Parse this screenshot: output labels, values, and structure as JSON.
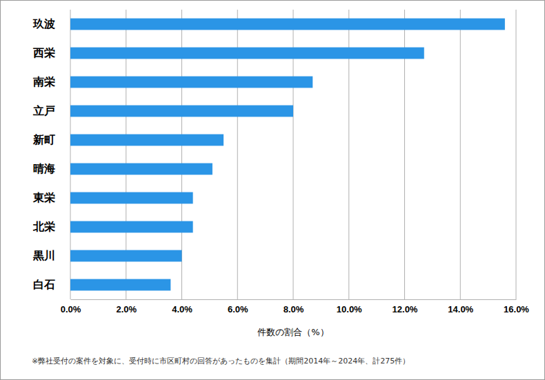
{
  "chart_data": {
    "type": "bar",
    "orientation": "horizontal",
    "categories": [
      "玖波",
      "西栄",
      "南栄",
      "立戸",
      "新町",
      "晴海",
      "東栄",
      "北栄",
      "黒川",
      "白石"
    ],
    "values": [
      15.6,
      12.7,
      8.7,
      8.0,
      5.5,
      5.1,
      4.4,
      4.4,
      4.0,
      3.6
    ],
    "color": "#2b95e6",
    "xlabel": "件数の割合（%）",
    "annotation": "※弊社受付の案件を対象に、受付時に市区町村の回答があったものを集計（期間2014年～2024年、計275件）",
    "xlim": [
      0,
      16
    ],
    "xticks": [
      {
        "value": 0,
        "label": "0.0%"
      },
      {
        "value": 2,
        "label": "2.0%"
      },
      {
        "value": 4,
        "label": "4.0%"
      },
      {
        "value": 6,
        "label": "6.0%"
      },
      {
        "value": 8,
        "label": "8.0%"
      },
      {
        "value": 10,
        "label": "10.0%"
      },
      {
        "value": 12,
        "label": "12.0%"
      },
      {
        "value": 14,
        "label": "14.0%"
      },
      {
        "value": 16,
        "label": "16.0%"
      }
    ],
    "grid": true
  }
}
